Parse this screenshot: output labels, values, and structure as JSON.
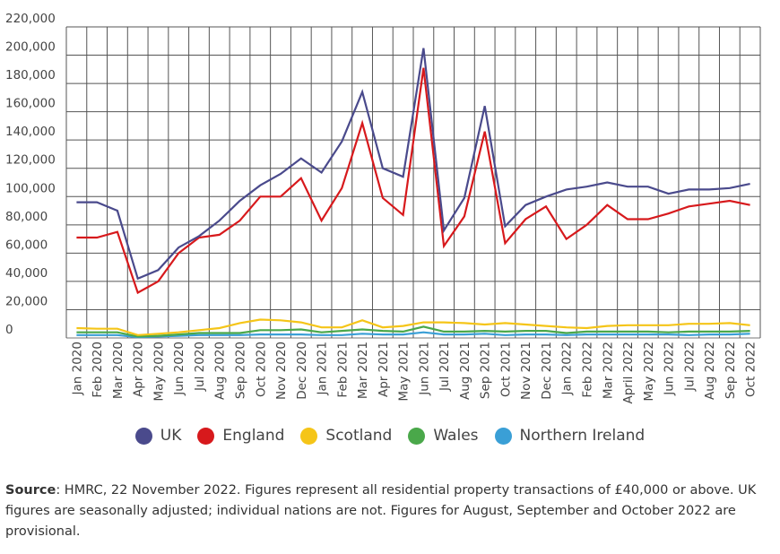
{
  "chart_data": {
    "type": "line",
    "title": "",
    "xlabel": "",
    "ylabel": "",
    "ylim": [
      0,
      220000
    ],
    "yticks": [
      0,
      20000,
      40000,
      60000,
      80000,
      100000,
      120000,
      140000,
      160000,
      180000,
      200000,
      220000
    ],
    "ytick_labels": [
      "0",
      "20,000",
      "40,000",
      "60,000",
      "80,000",
      "100,000",
      "120,000",
      "140,000",
      "160,000",
      "180,000",
      "200,000",
      "220,000"
    ],
    "grid": true,
    "legend_placement": "bottom",
    "categories": [
      "Jan 2020",
      "Feb 2020",
      "Mar 2020",
      "Apr 2020",
      "May 2020",
      "Jun 2020",
      "Jul 2020",
      "Aug 2020",
      "Sep 2020",
      "Oct 2020",
      "Nov 2020",
      "Dec 2020",
      "Jan 2021",
      "Feb 2021",
      "Mar 2021",
      "Apr 2021",
      "May 2021",
      "Jun 2021",
      "Jul 2021",
      "Aug 2021",
      "Sep 2021",
      "Oct 2021",
      "Nov 2021",
      "Dec 2021",
      "Jan 2022",
      "Feb 2022",
      "Mar 2022",
      "April 2022",
      "May 2022",
      "Jun 2022",
      "Jul 2022",
      "Aug 2022",
      "Sep 2022",
      "Oct 2022"
    ],
    "series": [
      {
        "name": "UK",
        "color": "#4a4a8c",
        "values": [
          96000,
          96000,
          90000,
          42000,
          48000,
          64000,
          72000,
          83000,
          97000,
          108000,
          116000,
          127000,
          117000,
          139000,
          174000,
          120000,
          114000,
          205000,
          76000,
          99000,
          164000,
          79000,
          94000,
          100000,
          105000,
          107000,
          110000,
          107000,
          107000,
          102000,
          105000,
          105000,
          106000,
          109000
        ]
      },
      {
        "name": "England",
        "color": "#d7191c",
        "values": [
          71000,
          71000,
          75000,
          32000,
          40000,
          60000,
          71000,
          73000,
          83000,
          100000,
          100000,
          113000,
          83000,
          106000,
          152000,
          99000,
          87000,
          191000,
          65000,
          86000,
          146000,
          67000,
          84000,
          93000,
          70000,
          80000,
          94000,
          84000,
          84000,
          88000,
          93000,
          95000,
          97000,
          94000
        ]
      },
      {
        "name": "Scotland",
        "color": "#f5c518",
        "values": [
          7000,
          6500,
          6500,
          2000,
          3000,
          4000,
          5500,
          7000,
          10500,
          13000,
          12500,
          11000,
          7500,
          7500,
          12500,
          7500,
          8500,
          11000,
          11000,
          10500,
          9500,
          10500,
          9500,
          8500,
          7500,
          7000,
          8500,
          9000,
          9000,
          9000,
          10000,
          10000,
          10500,
          9000
        ]
      },
      {
        "name": "Wales",
        "color": "#4aa84a",
        "values": [
          4000,
          4000,
          4000,
          1000,
          1500,
          2500,
          3500,
          3500,
          3500,
          5500,
          5500,
          6000,
          4000,
          5000,
          6000,
          5000,
          4500,
          8000,
          4500,
          4500,
          5000,
          4500,
          5000,
          5000,
          3500,
          4500,
          4500,
          4500,
          4500,
          4000,
          4500,
          4500,
          4500,
          5000
        ]
      },
      {
        "name": "Northern Ireland",
        "color": "#3a9fd6",
        "values": [
          2000,
          2000,
          2000,
          500,
          1000,
          1500,
          2000,
          2000,
          2000,
          2500,
          2500,
          2500,
          2000,
          2000,
          3000,
          2500,
          2500,
          4000,
          2500,
          2500,
          3000,
          2000,
          2500,
          2500,
          2000,
          2500,
          2500,
          2500,
          2500,
          2500,
          2000,
          2500,
          2500,
          3000
        ]
      }
    ]
  },
  "source": {
    "label": "Source",
    "text": ": HMRC, 22 November 2022. Figures represent all residential property transactions of £40,000 or above. UK figures are seasonally adjusted; individual nations are not. Figures for August, September and October 2022 are provisional."
  }
}
